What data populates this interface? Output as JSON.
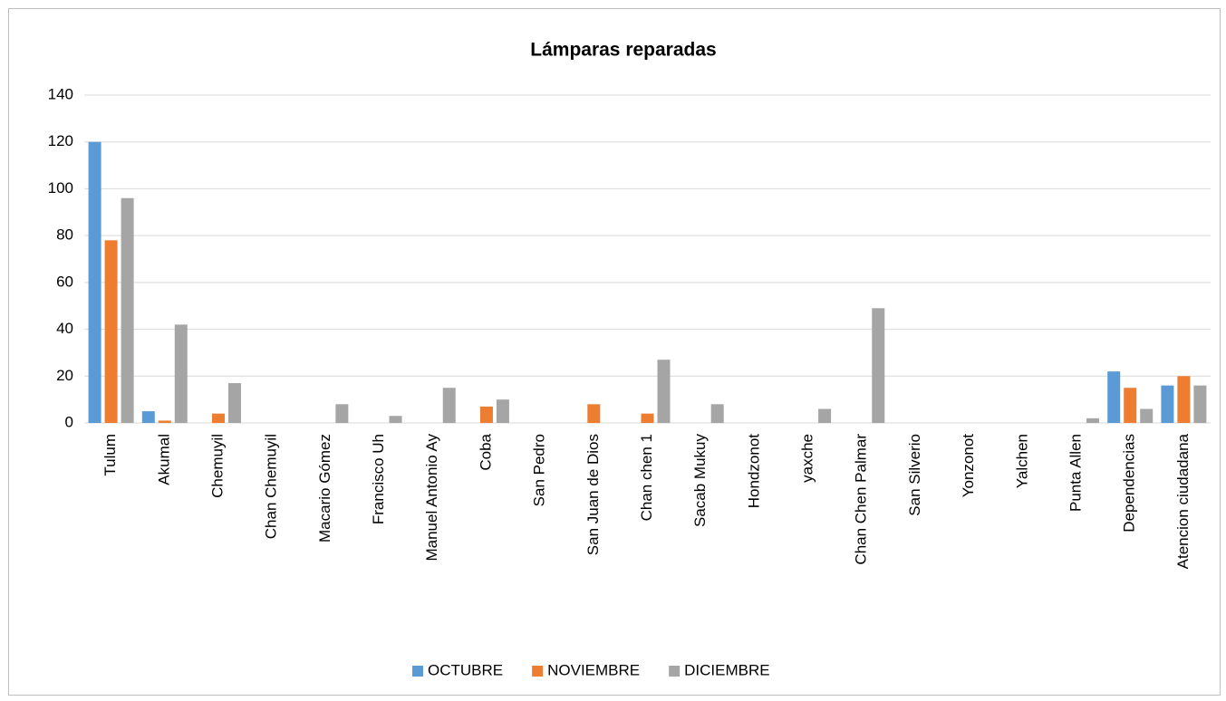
{
  "chart_data": {
    "type": "bar",
    "title": "Lámparas reparadas",
    "categories": [
      "Tulum",
      "Akumal",
      "Chemuyil",
      "Chan Chemuyil",
      "Macario Gómez",
      "Francisco Uh",
      "Manuel Antonio Ay",
      "Coba",
      "San Pedro",
      "San Juan de Dios",
      "Chan chen 1",
      "Sacab Mukuy",
      "Hondzonot",
      "yaxche",
      "Chan Chen Palmar",
      "San Silverio",
      "Yonzonot",
      "Yalchen",
      "Punta Allen",
      "Dependencias",
      "Atencion ciudadana"
    ],
    "series": [
      {
        "name": "OCTUBRE",
        "color": "#5b9bd5",
        "values": [
          120,
          5,
          0,
          0,
          0,
          0,
          0,
          0,
          0,
          0,
          0,
          0,
          0,
          0,
          0,
          0,
          0,
          0,
          0,
          22,
          16
        ]
      },
      {
        "name": "NOVIEMBRE",
        "color": "#ed7d31",
        "values": [
          78,
          1,
          4,
          0,
          0,
          0,
          0,
          7,
          0,
          8,
          4,
          0,
          0,
          0,
          0,
          0,
          0,
          0,
          0,
          15,
          20
        ]
      },
      {
        "name": "DICIEMBRE",
        "color": "#a5a5a5",
        "values": [
          96,
          42,
          17,
          0,
          8,
          3,
          15,
          10,
          0,
          0,
          27,
          8,
          0,
          6,
          49,
          0,
          0,
          0,
          2,
          6,
          16
        ]
      }
    ],
    "ylim": [
      0,
      140
    ],
    "yticks": [
      0,
      20,
      40,
      60,
      80,
      100,
      120,
      140
    ],
    "grid": true,
    "legend": "bottom"
  }
}
